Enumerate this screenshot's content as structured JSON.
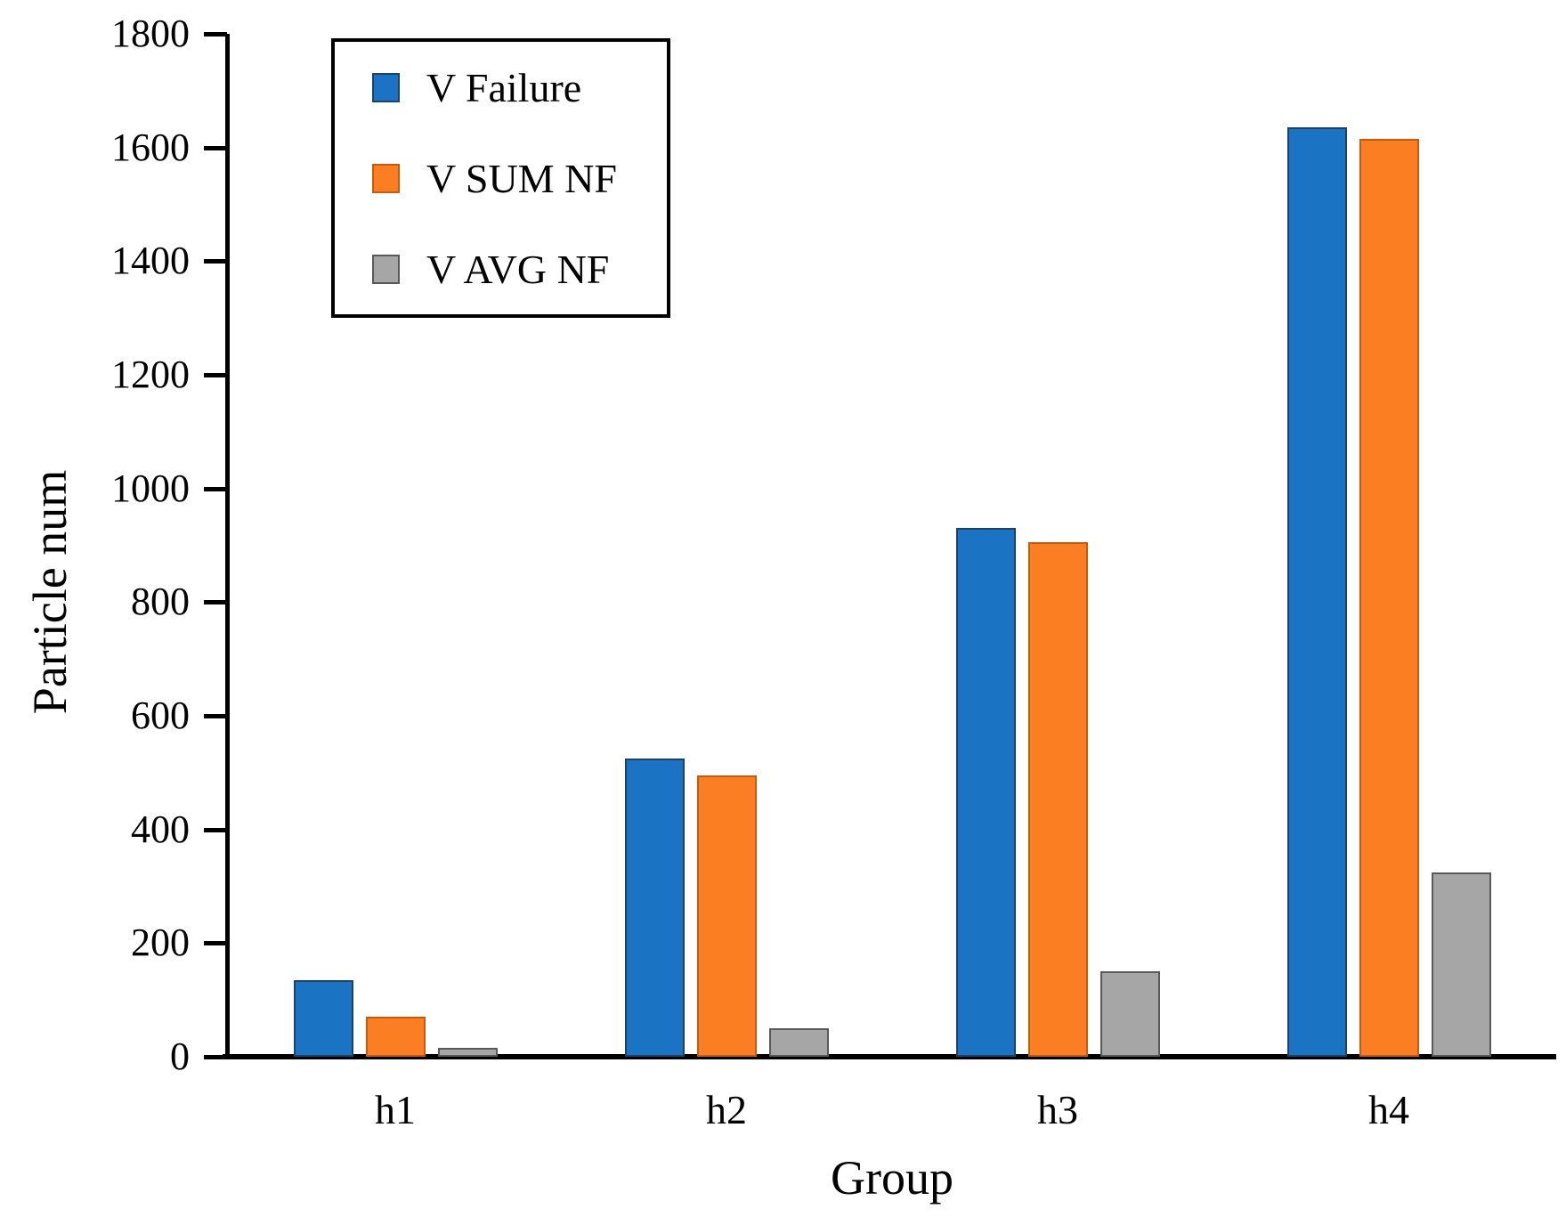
{
  "chart_data": {
    "type": "bar",
    "title": "",
    "xlabel": "Group",
    "ylabel": "Particle num",
    "categories": [
      "h1",
      "h2",
      "h3",
      "h4"
    ],
    "series": [
      {
        "name": "V Failure",
        "fill": "#1B73C4",
        "edge": "#1F4164",
        "values": [
          135,
          525,
          930,
          1635
        ]
      },
      {
        "name": "V SUM NF",
        "fill": "#FC7E23",
        "edge": "#C55A11",
        "values": [
          70,
          495,
          905,
          1615
        ]
      },
      {
        "name": "V AVG NF",
        "fill": "#A6A6A6",
        "edge": "#595959",
        "values": [
          15,
          50,
          150,
          325
        ]
      }
    ],
    "ylim": [
      0,
      1800
    ],
    "ytick_step": 200,
    "grid": false,
    "legend_position": "top-left",
    "axis_color": "#000000",
    "background_color": "#FFFFFF"
  }
}
